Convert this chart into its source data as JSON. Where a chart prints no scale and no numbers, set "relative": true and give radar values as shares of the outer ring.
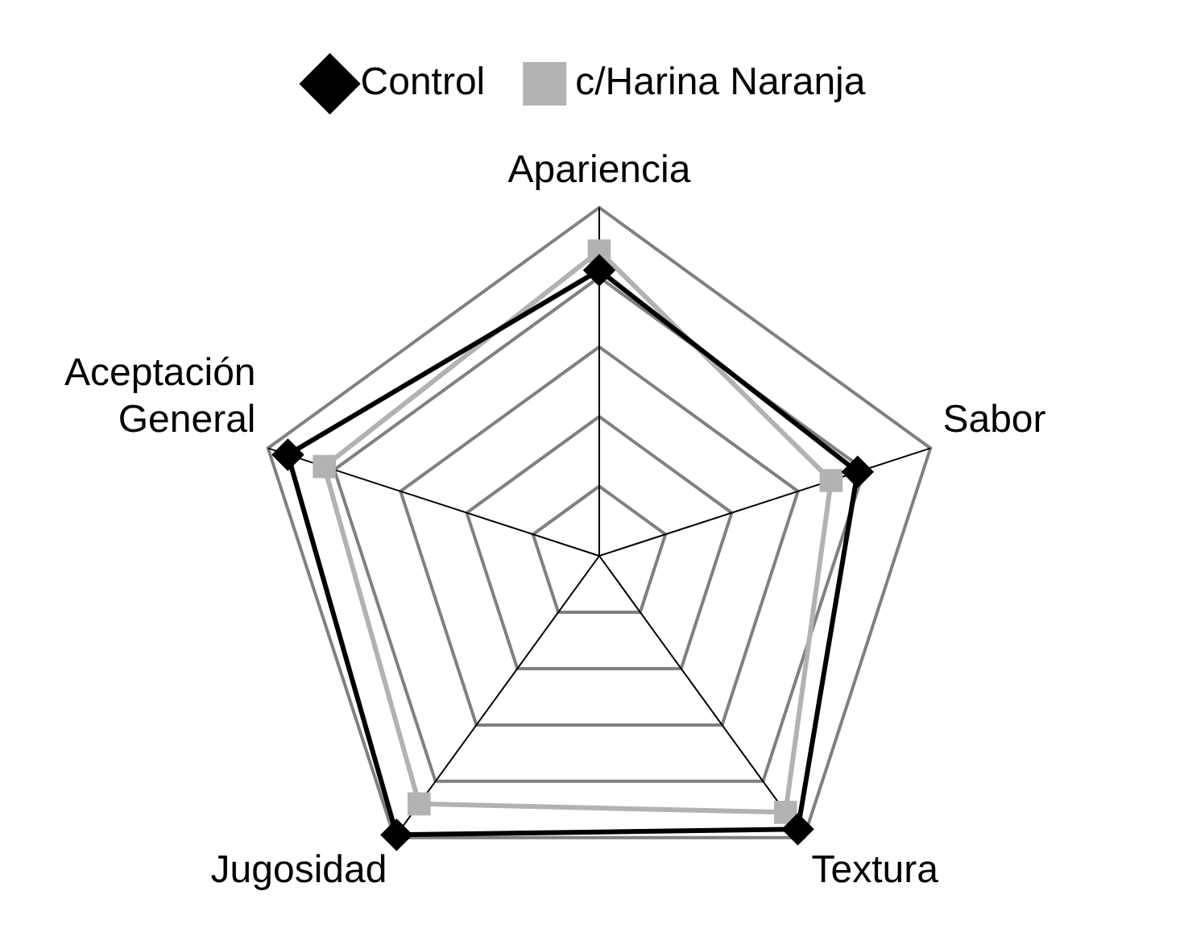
{
  "chart_data": {
    "type": "radar",
    "relative": true,
    "legend": "top",
    "grid": true,
    "line_style": "solid",
    "categories": [
      "Apariencia",
      "Sabor",
      "Textura",
      "Jugosidad",
      "Aceptación General"
    ],
    "series": [
      {
        "name": "Control",
        "color": "#000000",
        "marker": "diamond",
        "values": [
          0.82,
          0.78,
          0.97,
          0.99,
          0.94
        ]
      },
      {
        "name": "c/Harina Naranja",
        "color": "#b2b2b2",
        "marker": "square",
        "values": [
          0.875,
          0.7,
          0.91,
          0.88,
          0.83
        ]
      }
    ]
  }
}
